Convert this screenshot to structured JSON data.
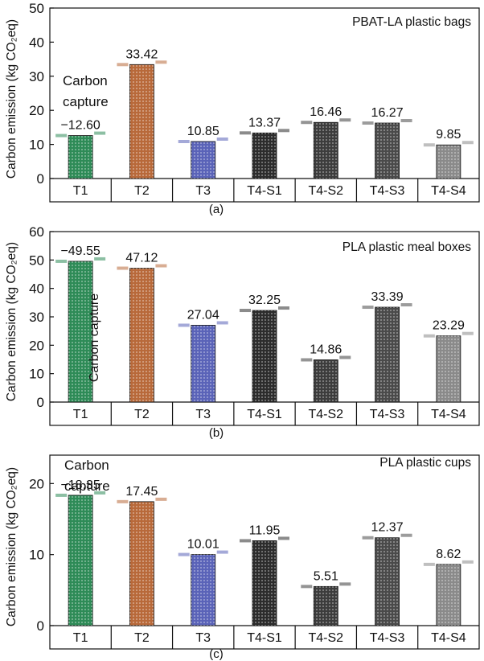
{
  "chart_data": [
    {
      "type": "bar",
      "panel_label": "(a)",
      "inset_title": "PBAT-LA plastic bags",
      "ylabel": "Carbon emission (kg CO₂eq)",
      "ylim": [
        0,
        50
      ],
      "yticks": [
        "0",
        "10",
        "20",
        "30",
        "40",
        "50"
      ],
      "categories": [
        "T1",
        "T2",
        "T3",
        "T4-S1",
        "T4-S2",
        "T4-S3",
        "T4-S4"
      ],
      "values": [
        12.6,
        33.42,
        10.85,
        13.37,
        16.46,
        16.27,
        9.85
      ],
      "value_labels": [
        "−12.60",
        "33.42",
        "10.85",
        "13.37",
        "16.46",
        "16.27",
        "9.85"
      ],
      "annotation": [
        "Carbon",
        "capture"
      ],
      "colors": [
        "#2e8b57",
        "#b8693a",
        "#5a63b8",
        "#2c2c2c",
        "#3c3c3c",
        "#4a4a4a",
        "#8a8a8a"
      ]
    },
    {
      "type": "bar",
      "panel_label": "(b)",
      "inset_title": "PLA plastic meal boxes",
      "ylabel": "Carbon emission (kg CO₂eq)",
      "ylim": [
        0,
        60
      ],
      "yticks": [
        "0",
        "10",
        "20",
        "30",
        "40",
        "50",
        "60"
      ],
      "categories": [
        "T1",
        "T2",
        "T3",
        "T4-S1",
        "T4-S2",
        "T4-S3",
        "T4-S4"
      ],
      "values": [
        49.55,
        47.12,
        27.04,
        32.25,
        14.86,
        33.39,
        23.29
      ],
      "value_labels": [
        "−49.55",
        "47.12",
        "27.04",
        "32.25",
        "14.86",
        "33.39",
        "23.29"
      ],
      "annotation": [
        "Carbon capture"
      ],
      "colors": [
        "#2e8b57",
        "#b8693a",
        "#5a63b8",
        "#2c2c2c",
        "#3c3c3c",
        "#4a4a4a",
        "#8a8a8a"
      ]
    },
    {
      "type": "bar",
      "panel_label": "(c)",
      "inset_title": "PLA plastic cups",
      "ylabel": "Carbon emission (kg CO₂eq)",
      "ylim": [
        0,
        24
      ],
      "yticks": [
        "0",
        "10",
        "20"
      ],
      "categories": [
        "T1",
        "T2",
        "T3",
        "T4-S1",
        "T4-S2",
        "T4-S3",
        "T4-S4"
      ],
      "values": [
        18.35,
        17.45,
        10.01,
        11.95,
        5.51,
        12.37,
        8.62
      ],
      "value_labels": [
        "−18.35",
        "17.45",
        "10.01",
        "11.95",
        "5.51",
        "12.37",
        "8.62"
      ],
      "annotation": [
        "Carbon",
        "capture"
      ],
      "colors": [
        "#2e8b57",
        "#b8693a",
        "#5a63b8",
        "#2c2c2c",
        "#3c3c3c",
        "#4a4a4a",
        "#8a8a8a"
      ]
    }
  ]
}
